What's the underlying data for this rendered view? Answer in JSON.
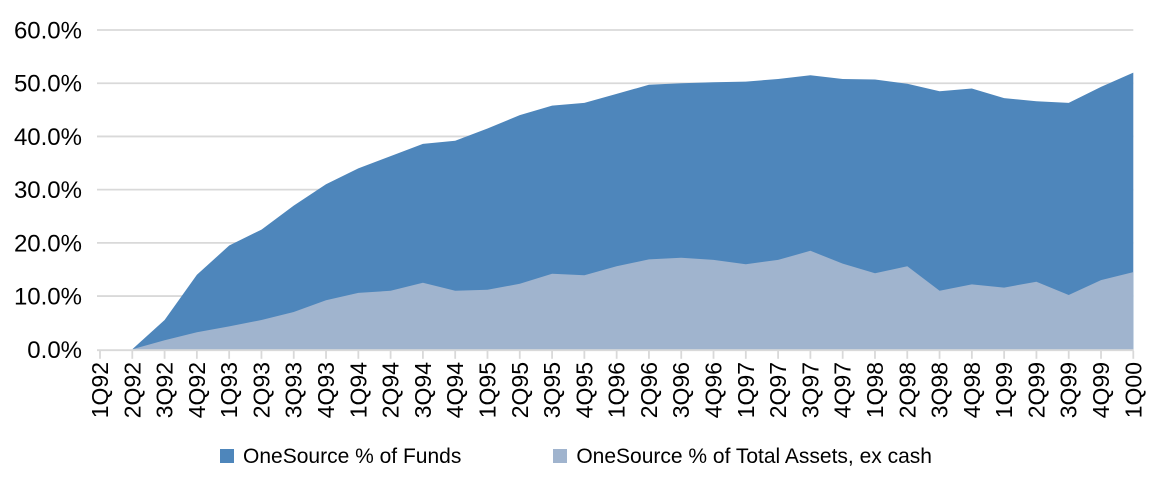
{
  "chart_data": {
    "type": "area",
    "stacked": false,
    "title": "",
    "xlabel": "",
    "ylabel": "",
    "ylim": [
      0,
      60
    ],
    "y_ticks": [
      0,
      10,
      20,
      30,
      40,
      50,
      60
    ],
    "y_tick_labels": [
      "0.0%",
      "10.0%",
      "20.0%",
      "30.0%",
      "40.0%",
      "50.0%",
      "60.0%"
    ],
    "grid": true,
    "legend_position": "bottom",
    "categories": [
      "1Q92",
      "2Q92",
      "3Q92",
      "4Q92",
      "1Q93",
      "2Q93",
      "3Q93",
      "4Q93",
      "1Q94",
      "2Q94",
      "3Q94",
      "4Q94",
      "1Q95",
      "2Q95",
      "3Q95",
      "4Q95",
      "1Q96",
      "2Q96",
      "3Q96",
      "4Q96",
      "1Q97",
      "2Q97",
      "3Q97",
      "4Q97",
      "1Q98",
      "2Q98",
      "3Q98",
      "4Q98",
      "1Q99",
      "2Q99",
      "3Q99",
      "4Q99",
      "1Q00"
    ],
    "series": [
      {
        "name": "OneSource % of Funds",
        "color": "#4E86BB",
        "values": [
          0.0,
          0.0,
          5.5,
          14.0,
          19.5,
          22.5,
          27.0,
          31.0,
          34.0,
          36.3,
          38.6,
          39.2,
          41.5,
          44.0,
          45.8,
          46.3,
          48.0,
          49.7,
          50.0,
          50.2,
          50.3,
          50.8,
          51.5,
          50.8,
          50.7,
          49.9,
          48.5,
          49.0,
          47.2,
          46.6,
          46.3,
          49.3,
          52.0
        ]
      },
      {
        "name": "OneSource % of Total Assets, ex cash",
        "color": "#A0B4CE",
        "values": [
          0.0,
          0.0,
          1.7,
          3.2,
          4.3,
          5.5,
          7.0,
          9.2,
          10.6,
          11.0,
          12.5,
          11.0,
          11.2,
          12.3,
          14.2,
          13.9,
          15.6,
          16.9,
          17.2,
          16.8,
          16.0,
          16.8,
          18.5,
          16.1,
          14.3,
          15.6,
          11.0,
          12.2,
          11.6,
          12.7,
          10.2,
          13.0,
          14.5
        ]
      }
    ],
    "gridline_color": "#D9D9D9",
    "axis_text_color": "#000000"
  },
  "legend": {
    "items": [
      {
        "label": "OneSource % of Funds"
      },
      {
        "label": "OneSource % of Total Assets, ex cash"
      }
    ]
  }
}
